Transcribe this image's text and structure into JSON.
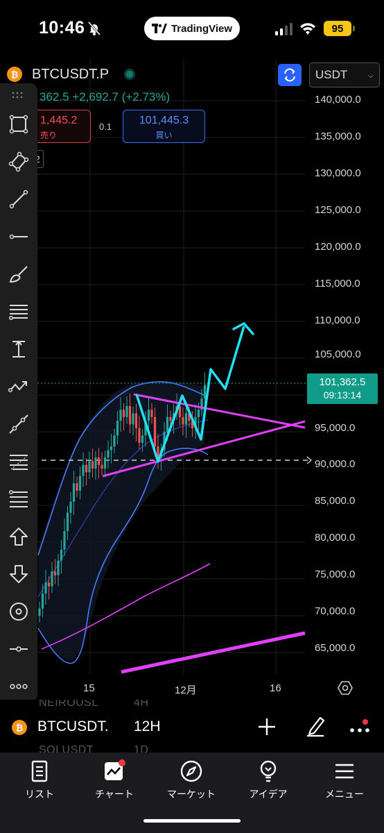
{
  "status_bar": {
    "time": "10:46",
    "app_pill": "TradingView",
    "battery": "95"
  },
  "header": {
    "symbol": "BTCUSDT.P",
    "currency": "USDT",
    "last": "362.5",
    "change": "+2,692.7",
    "change_pct": "(+2.73%)",
    "sell_price": "1,445.2",
    "sell_label": "売り",
    "spread": "0.1",
    "buy_price": "101,445.3",
    "buy_label": "買い",
    "badge": "2"
  },
  "price_axis": {
    "labels": [
      "140,000.0",
      "135,000.0",
      "130,000.0",
      "125,000.0",
      "120,000.0",
      "115,000.0",
      "110,000.0",
      "105,000.0",
      "95,000.0",
      "90,000.0",
      "85,000.0",
      "80,000.0",
      "75,000.0",
      "70,000.0",
      "65,000.0"
    ],
    "last_price": "101,362.5",
    "countdown": "09:13:14"
  },
  "time_axis": {
    "labels": [
      "15",
      "12月",
      "16"
    ]
  },
  "symbol_bar": {
    "symbol": "BTCUSDT.",
    "interval": "12H",
    "ghost_symbol_top": "NEIROUSL",
    "ghost_interval_top": "4H",
    "ghost_symbol_bottom": "SOLUSDT",
    "ghost_interval_bottom": "1D"
  },
  "nav": [
    {
      "label": "リスト",
      "icon": "list-icon"
    },
    {
      "label": "チャート",
      "icon": "chart-icon"
    },
    {
      "label": "マーケット",
      "icon": "compass-icon"
    },
    {
      "label": "アイデア",
      "icon": "lightbulb-icon"
    },
    {
      "label": "メニュー",
      "icon": "menu-icon"
    }
  ],
  "colors": {
    "up": "#26a69a",
    "down": "#ef5350",
    "accent": "#2962ff",
    "magenta": "#e040fb",
    "cyan": "#22e0f0"
  }
}
